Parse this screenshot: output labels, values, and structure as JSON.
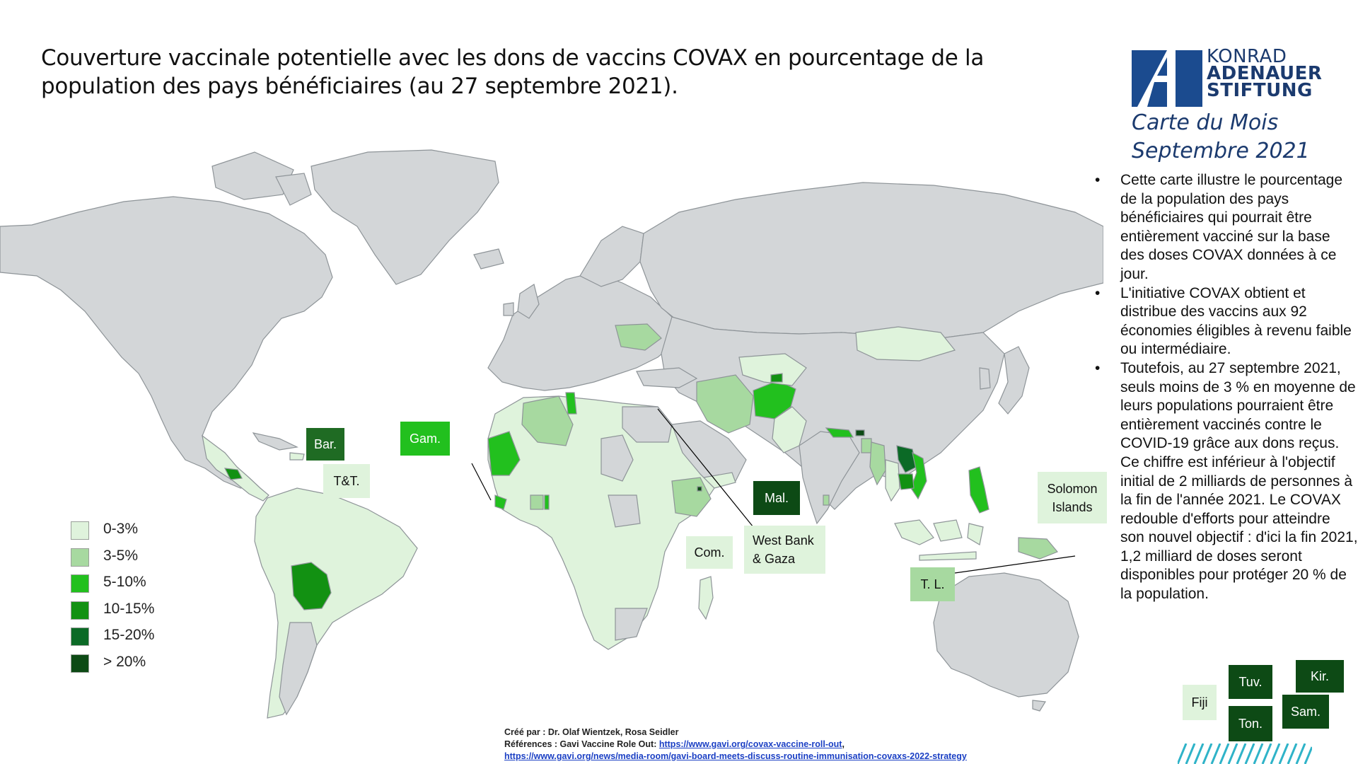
{
  "title": "Couverture vaccinale potentielle avec les dons de vaccins COVAX en pourcentage de la population des pays bénéficiaires (au 27 septembre 2021).",
  "logo": {
    "line1": "KONRAD",
    "line2": "ADENAUER",
    "line3": "STIFTUNG",
    "color": "#1b3a6e"
  },
  "subtitle": {
    "line1": "Carte du Mois",
    "line2": "Septembre 2021"
  },
  "bullets": [
    "Cette carte illustre le pourcentage de la population des pays bénéficiaires qui pourrait être entièrement vacciné sur la base des doses COVAX données à ce jour.",
    "L'initiative COVAX obtient et distribue des vaccins aux 92 économies éligibles à revenu faible ou intermédiaire.",
    "Toutefois, au 27 septembre 2021, seuls moins de 3 % en moyenne de leurs populations pourraient être entièrement vaccinés contre le COVID-19 grâce aux dons reçus."
  ],
  "bullet_continuation": "Ce chiffre est inférieur à l'objectif initial de 2 milliards de personnes à la fin de l'année 2021. Le COVAX redouble d'efforts pour atteindre son nouvel objectif : d'ici la fin 2021, 1,2 milliard de doses seront disponibles pour protéger 20 % de la population.",
  "legend": [
    {
      "label": "0-3%",
      "color": "#dff3dc"
    },
    {
      "label": "3-5%",
      "color": "#a7d9a0"
    },
    {
      "label": "5-10%",
      "color": "#22c01e"
    },
    {
      "label": "10-15%",
      "color": "#129112"
    },
    {
      "label": "15-20%",
      "color": "#0b6a26"
    },
    {
      "label": "> 20%",
      "color": "#0d4a15"
    }
  ],
  "map_labels": {
    "barbados": "Bar.",
    "trinidad": "T&T.",
    "gambia": "Gam.",
    "maldives": "Mal.",
    "west_bank": "West Bank & Gaza",
    "comoros": "Com.",
    "timor": "T. L.",
    "solomon": "Solomon Islands",
    "fiji": "Fiji",
    "tuvalu": "Tuv.",
    "tonga": "Ton.",
    "kiribati": "Kir.",
    "samoa": "Sam."
  },
  "credits": {
    "created_by": "Créé par : Dr. Olaf Wientzek, Rosa Seidler",
    "references_prefix": "Références : Gavi Vaccine Role Out: ",
    "link1": "https://www.gavi.org/covax-vaccine-roll-out",
    "link1_suffix": ",",
    "link2": "https://www.gavi.org/news/media-room/gavi-board-meets-discuss-routine-immunisation-covaxs-2022-strategy"
  }
}
